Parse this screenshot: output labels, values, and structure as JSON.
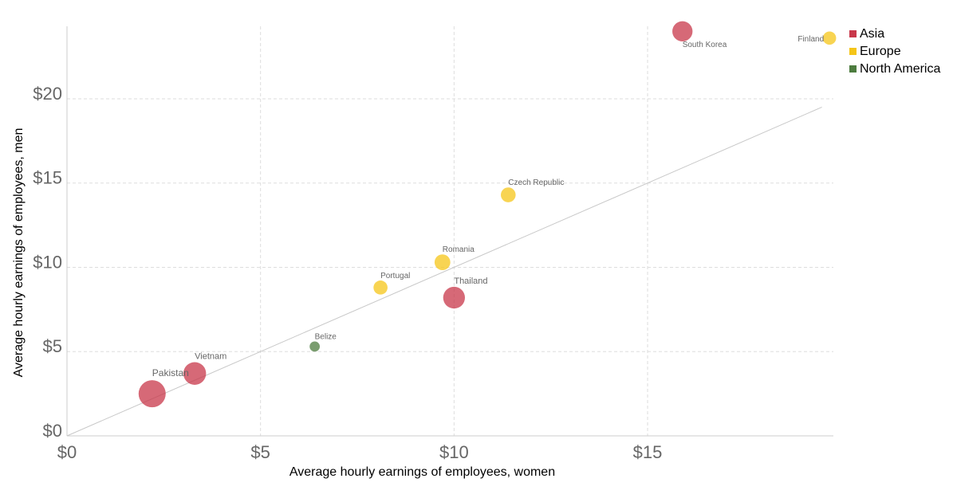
{
  "chart_data": {
    "type": "scatter",
    "xlabel": "Average hourly earnings of employees, women",
    "ylabel": "Average hourly earnings of employees, men",
    "xlim": [
      0,
      19.8
    ],
    "ylim": [
      0,
      24.3
    ],
    "x_ticks": [
      0,
      5,
      10,
      15
    ],
    "x_tick_labels": [
      "$0",
      "$5",
      "$10",
      "$15"
    ],
    "y_ticks": [
      0,
      5,
      10,
      15,
      20
    ],
    "y_tick_labels": [
      "$0",
      "$5",
      "$10",
      "$15",
      "$20"
    ],
    "grid": true,
    "reference_line": "y = x",
    "legend_position": "top-right",
    "legend": [
      {
        "name": "Asia",
        "color": "#c8374a"
      },
      {
        "name": "Europe",
        "color": "#f5c518"
      },
      {
        "name": "North America",
        "color": "#4d7c3f"
      }
    ],
    "points": [
      {
        "label": "Pakistan",
        "region": "Asia",
        "x": 2.2,
        "y": 2.5,
        "size": 1.0
      },
      {
        "label": "Vietnam",
        "region": "Asia",
        "x": 3.3,
        "y": 3.7,
        "size": 0.66
      },
      {
        "label": "Belize",
        "region": "North America",
        "x": 6.4,
        "y": 5.3,
        "size": 0.08
      },
      {
        "label": "Portugal",
        "region": "Europe",
        "x": 8.1,
        "y": 8.8,
        "size": 0.2
      },
      {
        "label": "Romania",
        "region": "Europe",
        "x": 9.7,
        "y": 10.3,
        "size": 0.27
      },
      {
        "label": "Thailand",
        "region": "Asia",
        "x": 10.0,
        "y": 8.2,
        "size": 0.6
      },
      {
        "label": "Czech Republic",
        "region": "Europe",
        "x": 11.4,
        "y": 14.3,
        "size": 0.23
      },
      {
        "label": "South Korea",
        "region": "Asia",
        "x": 15.9,
        "y": 24.0,
        "size": 0.5
      },
      {
        "label": "Finland",
        "region": "Europe",
        "x": 19.7,
        "y": 23.6,
        "size": 0.17
      }
    ]
  }
}
